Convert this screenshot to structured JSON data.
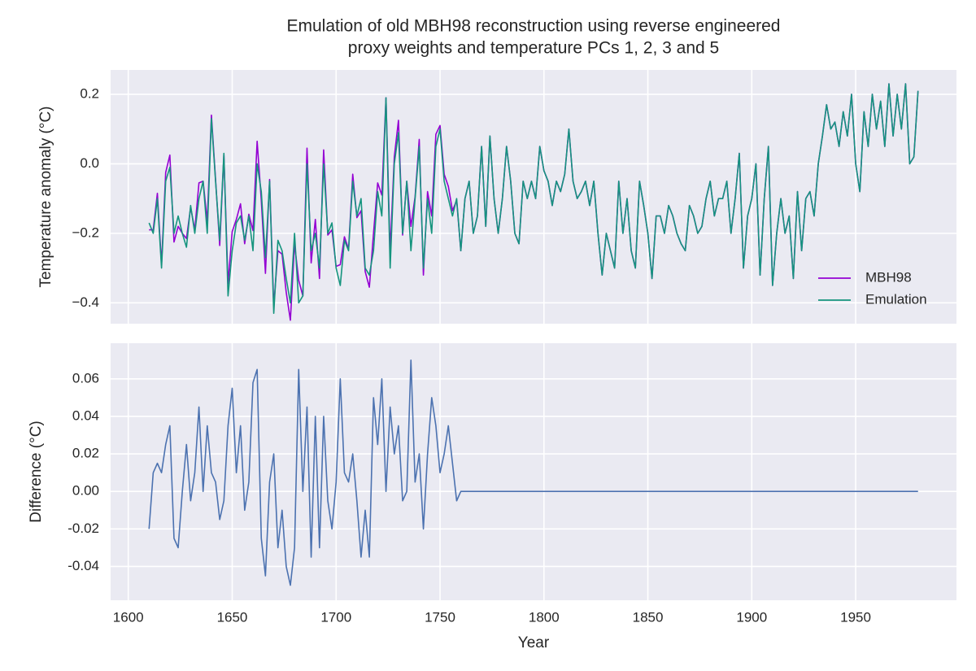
{
  "chart_data": [
    {
      "type": "line",
      "title": [
        "Emulation of old MBH98 reconstruction using reverse engineered",
        "proxy weights and temperature PCs 1, 2, 3 and 5"
      ],
      "ylabel": "Temperature anomaly (°C)",
      "xlim": [
        1591.5,
        1998.5
      ],
      "xticks": [
        1600,
        1650,
        1700,
        1750,
        1800,
        1850,
        1900,
        1950
      ],
      "ylim": [
        -0.46,
        0.27
      ],
      "yticks": [
        {
          "value": -0.4,
          "label": "−0.4"
        },
        {
          "value": -0.2,
          "label": "−0.2"
        },
        {
          "value": 0,
          "label": "0.0"
        },
        0.2
      ],
      "grid": true,
      "legend": "lower right",
      "x": [
        1610,
        1612,
        1614,
        1616,
        1618,
        1620,
        1622,
        1624,
        1626,
        1628,
        1630,
        1632,
        1634,
        1636,
        1638,
        1640,
        1642,
        1644,
        1646,
        1648,
        1650,
        1652,
        1654,
        1656,
        1658,
        1660,
        1662,
        1664,
        1666,
        1668,
        1670,
        1672,
        1674,
        1676,
        1678,
        1680,
        1682,
        1684,
        1686,
        1688,
        1690,
        1692,
        1694,
        1696,
        1698,
        1700,
        1702,
        1704,
        1706,
        1708,
        1710,
        1712,
        1714,
        1716,
        1718,
        1720,
        1722,
        1724,
        1726,
        1728,
        1730,
        1732,
        1734,
        1736,
        1738,
        1740,
        1742,
        1744,
        1746,
        1748,
        1750,
        1752,
        1754,
        1756,
        1758,
        1760,
        1762,
        1764,
        1766,
        1768,
        1770,
        1772,
        1774,
        1776,
        1778,
        1780,
        1782,
        1784,
        1786,
        1788,
        1790,
        1792,
        1794,
        1796,
        1798,
        1800,
        1802,
        1804,
        1806,
        1808,
        1810,
        1812,
        1814,
        1816,
        1818,
        1820,
        1822,
        1824,
        1826,
        1828,
        1830,
        1832,
        1834,
        1836,
        1838,
        1840,
        1842,
        1844,
        1846,
        1848,
        1850,
        1852,
        1854,
        1856,
        1858,
        1860,
        1862,
        1864,
        1866,
        1868,
        1870,
        1872,
        1874,
        1876,
        1878,
        1880,
        1882,
        1884,
        1886,
        1888,
        1890,
        1892,
        1894,
        1896,
        1898,
        1900,
        1902,
        1904,
        1906,
        1908,
        1910,
        1912,
        1914,
        1916,
        1918,
        1920,
        1922,
        1924,
        1926,
        1928,
        1930,
        1932,
        1934,
        1936,
        1938,
        1940,
        1942,
        1944,
        1946,
        1948,
        1950,
        1952,
        1954,
        1956,
        1958,
        1960,
        1962,
        1964,
        1966,
        1968,
        1970,
        1972,
        1974,
        1976,
        1978,
        1980
      ],
      "series": [
        {
          "name": "MBH98",
          "color": "#9400d3",
          "values": [
            -0.19,
            -0.19,
            -0.085,
            -0.29,
            -0.025,
            0.025,
            -0.225,
            -0.18,
            -0.2,
            -0.215,
            -0.125,
            -0.19,
            -0.055,
            -0.05,
            -0.165,
            0.14,
            -0.045,
            -0.235,
            0.025,
            -0.345,
            -0.195,
            -0.16,
            -0.115,
            -0.23,
            -0.145,
            -0.192,
            0.065,
            -0.105,
            -0.315,
            -0.045,
            -0.41,
            -0.25,
            -0.26,
            -0.37,
            -0.45,
            -0.23,
            -0.335,
            -0.38,
            0.045,
            -0.285,
            -0.16,
            -0.33,
            0.04,
            -0.205,
            -0.19,
            -0.295,
            -0.29,
            -0.21,
            -0.245,
            -0.03,
            -0.155,
            -0.135,
            -0.31,
            -0.355,
            -0.2,
            -0.055,
            -0.09,
            0.19,
            -0.255,
            0.02,
            0.125,
            -0.205,
            -0.05,
            -0.18,
            -0.095,
            0.07,
            -0.32,
            -0.08,
            -0.15,
            0.085,
            0.11,
            -0.03,
            -0.065,
            -0.135,
            -0.105,
            -0.25,
            -0.1,
            -0.05,
            -0.2,
            -0.15,
            0.05,
            -0.18,
            0.08,
            -0.1,
            -0.2,
            -0.1,
            0.05,
            -0.05,
            -0.2,
            -0.23,
            -0.05,
            -0.1,
            -0.05,
            -0.1,
            0.05,
            -0.02,
            -0.05,
            -0.12,
            -0.05,
            -0.08,
            -0.03,
            0.1,
            -0.05,
            -0.1,
            -0.08,
            -0.05,
            -0.12,
            -0.05,
            -0.2,
            -0.32,
            -0.2,
            -0.25,
            -0.3,
            -0.05,
            -0.2,
            -0.1,
            -0.25,
            -0.3,
            -0.05,
            -0.12,
            -0.2,
            -0.33,
            -0.15,
            -0.15,
            -0.2,
            -0.12,
            -0.15,
            -0.2,
            -0.23,
            -0.25,
            -0.12,
            -0.15,
            -0.2,
            -0.18,
            -0.1,
            -0.05,
            -0.15,
            -0.1,
            -0.1,
            -0.05,
            -0.2,
            -0.1,
            0.03,
            -0.3,
            -0.15,
            -0.1,
            0.0,
            -0.32,
            -0.1,
            0.05,
            -0.35,
            -0.2,
            -0.1,
            -0.2,
            -0.15,
            -0.33,
            -0.08,
            -0.25,
            -0.1,
            -0.08,
            -0.15,
            0.0,
            0.08,
            0.17,
            0.1,
            0.12,
            0.05,
            0.15,
            0.08,
            0.2,
            0.0,
            -0.08,
            0.15,
            0.05,
            0.2,
            0.1,
            0.18,
            0.05,
            0.23,
            0.08,
            0.2,
            0.1,
            0.23,
            0.0,
            0.02,
            0.21
          ]
        },
        {
          "name": "Emulation",
          "color": "#15947e",
          "values": [
            -0.17,
            -0.2,
            -0.1,
            -0.3,
            -0.05,
            -0.01,
            -0.2,
            -0.15,
            -0.2,
            -0.24,
            -0.12,
            -0.2,
            -0.1,
            -0.05,
            -0.2,
            0.13,
            -0.05,
            -0.22,
            0.03,
            -0.38,
            -0.25,
            -0.17,
            -0.15,
            -0.22,
            -0.15,
            -0.25,
            0.0,
            -0.08,
            -0.27,
            -0.05,
            -0.43,
            -0.22,
            -0.25,
            -0.33,
            -0.4,
            -0.2,
            -0.4,
            -0.38,
            0.0,
            -0.25,
            -0.2,
            -0.3,
            0.0,
            -0.2,
            -0.17,
            -0.3,
            -0.35,
            -0.22,
            -0.25,
            -0.05,
            -0.15,
            -0.1,
            -0.3,
            -0.32,
            -0.25,
            -0.08,
            -0.15,
            0.19,
            -0.3,
            0.0,
            0.09,
            -0.2,
            -0.05,
            -0.25,
            -0.1,
            0.05,
            -0.3,
            -0.1,
            -0.2,
            0.05,
            0.1,
            -0.05,
            -0.1,
            -0.15,
            -0.1,
            -0.25,
            -0.1,
            -0.05,
            -0.2,
            -0.15,
            0.05,
            -0.18,
            0.08,
            -0.1,
            -0.2,
            -0.1,
            0.05,
            -0.05,
            -0.2,
            -0.23,
            -0.05,
            -0.1,
            -0.05,
            -0.1,
            0.05,
            -0.02,
            -0.05,
            -0.12,
            -0.05,
            -0.08,
            -0.03,
            0.1,
            -0.05,
            -0.1,
            -0.08,
            -0.05,
            -0.12,
            -0.05,
            -0.2,
            -0.32,
            -0.2,
            -0.25,
            -0.3,
            -0.05,
            -0.2,
            -0.1,
            -0.25,
            -0.3,
            -0.05,
            -0.12,
            -0.2,
            -0.33,
            -0.15,
            -0.15,
            -0.2,
            -0.12,
            -0.15,
            -0.2,
            -0.23,
            -0.25,
            -0.12,
            -0.15,
            -0.2,
            -0.18,
            -0.1,
            -0.05,
            -0.15,
            -0.1,
            -0.1,
            -0.05,
            -0.2,
            -0.1,
            0.03,
            -0.3,
            -0.15,
            -0.1,
            0.0,
            -0.32,
            -0.1,
            0.05,
            -0.35,
            -0.2,
            -0.1,
            -0.2,
            -0.15,
            -0.33,
            -0.08,
            -0.25,
            -0.1,
            -0.08,
            -0.15,
            0.0,
            0.08,
            0.17,
            0.1,
            0.12,
            0.05,
            0.15,
            0.08,
            0.2,
            0.0,
            -0.08,
            0.15,
            0.05,
            0.2,
            0.1,
            0.18,
            0.05,
            0.23,
            0.08,
            0.2,
            0.1,
            0.23,
            0.0,
            0.02,
            0.21
          ]
        }
      ]
    },
    {
      "type": "line",
      "ylabel": "Difference (°C)",
      "xlabel": "Year",
      "xlim": [
        1591.5,
        1998.5
      ],
      "xticks": [
        1600,
        1650,
        1700,
        1750,
        1800,
        1850,
        1900,
        1950
      ],
      "ylim": [
        -0.058,
        0.079
      ],
      "yticks": [
        -0.04,
        -0.02,
        {
          "value": 0,
          "label": "0.00"
        },
        0.02,
        0.04,
        0.06
      ],
      "grid": true,
      "x": [
        1610,
        1612,
        1614,
        1616,
        1618,
        1620,
        1622,
        1624,
        1626,
        1628,
        1630,
        1632,
        1634,
        1636,
        1638,
        1640,
        1642,
        1644,
        1646,
        1648,
        1650,
        1652,
        1654,
        1656,
        1658,
        1660,
        1662,
        1664,
        1666,
        1668,
        1670,
        1672,
        1674,
        1676,
        1678,
        1680,
        1682,
        1684,
        1686,
        1688,
        1690,
        1692,
        1694,
        1696,
        1698,
        1700,
        1702,
        1704,
        1706,
        1708,
        1710,
        1712,
        1714,
        1716,
        1718,
        1720,
        1722,
        1724,
        1726,
        1728,
        1730,
        1732,
        1734,
        1736,
        1738,
        1740,
        1742,
        1744,
        1746,
        1748,
        1750,
        1752,
        1754,
        1756,
        1758,
        1760,
        1762,
        1764,
        1766,
        1768,
        1770,
        1772,
        1774,
        1776,
        1778,
        1780,
        1782,
        1784,
        1786,
        1788,
        1790,
        1792,
        1794,
        1796,
        1798,
        1800,
        1802,
        1804,
        1806,
        1808,
        1810,
        1812,
        1814,
        1816,
        1818,
        1820,
        1822,
        1824,
        1826,
        1828,
        1830,
        1832,
        1834,
        1836,
        1838,
        1840,
        1842,
        1844,
        1846,
        1848,
        1850,
        1852,
        1854,
        1856,
        1858,
        1860,
        1862,
        1864,
        1866,
        1868,
        1870,
        1872,
        1874,
        1876,
        1878,
        1880,
        1882,
        1884,
        1886,
        1888,
        1890,
        1892,
        1894,
        1896,
        1898,
        1900,
        1902,
        1904,
        1906,
        1908,
        1910,
        1912,
        1914,
        1916,
        1918,
        1920,
        1922,
        1924,
        1926,
        1928,
        1930,
        1932,
        1934,
        1936,
        1938,
        1940,
        1942,
        1944,
        1946,
        1948,
        1950,
        1952,
        1954,
        1956,
        1958,
        1960,
        1962,
        1964,
        1966,
        1968,
        1970,
        1972,
        1974,
        1976,
        1978,
        1980
      ],
      "series": [
        {
          "color": "#4c72b0",
          "values": [
            -0.02,
            0.01,
            0.015,
            0.01,
            0.025,
            0.035,
            -0.025,
            -0.03,
            0.0,
            0.025,
            -0.005,
            0.01,
            0.045,
            0.0,
            0.035,
            0.01,
            0.005,
            -0.015,
            -0.005,
            0.035,
            0.055,
            0.01,
            0.035,
            -0.01,
            0.005,
            0.058,
            0.065,
            -0.025,
            -0.045,
            0.005,
            0.02,
            -0.03,
            -0.01,
            -0.04,
            -0.05,
            -0.03,
            0.065,
            0.0,
            0.045,
            -0.035,
            0.04,
            -0.03,
            0.04,
            -0.005,
            -0.02,
            0.005,
            0.06,
            0.01,
            0.005,
            0.02,
            -0.005,
            -0.035,
            -0.01,
            -0.035,
            0.05,
            0.025,
            0.06,
            0.0,
            0.045,
            0.02,
            0.035,
            -0.005,
            0.0,
            0.07,
            0.005,
            0.02,
            -0.02,
            0.02,
            0.05,
            0.035,
            0.01,
            0.02,
            0.035,
            0.015,
            -0.005,
            0,
            0,
            0,
            0,
            0,
            0,
            0,
            0,
            0,
            0,
            0,
            0,
            0,
            0,
            0,
            0,
            0,
            0,
            0,
            0,
            0,
            0,
            0,
            0,
            0,
            0,
            0,
            0,
            0,
            0,
            0,
            0,
            0,
            0,
            0,
            0,
            0,
            0,
            0,
            0,
            0,
            0,
            0,
            0,
            0,
            0,
            0,
            0,
            0,
            0,
            0,
            0,
            0,
            0,
            0,
            0,
            0,
            0,
            0,
            0,
            0,
            0,
            0,
            0,
            0,
            0,
            0,
            0,
            0,
            0,
            0,
            0,
            0,
            0,
            0,
            0,
            0,
            0,
            0,
            0,
            0,
            0,
            0,
            0,
            0,
            0,
            0,
            0,
            0,
            0,
            0,
            0,
            0,
            0,
            0,
            0,
            0,
            0,
            0,
            0,
            0,
            0,
            0,
            0,
            0,
            0,
            0,
            0,
            0,
            0,
            0
          ]
        }
      ]
    }
  ]
}
